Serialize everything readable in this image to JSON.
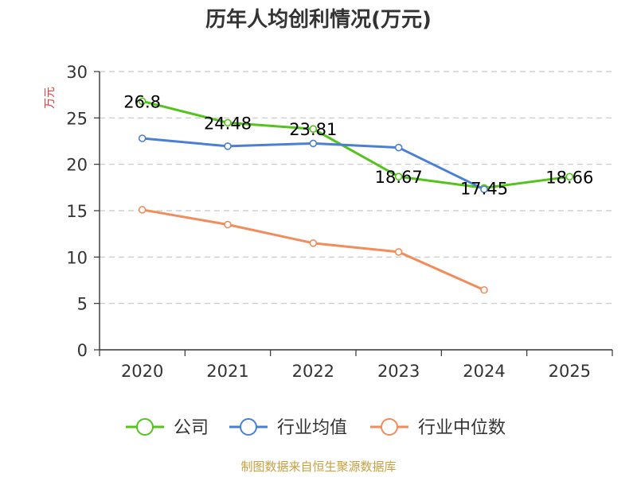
{
  "chart_data": {
    "type": "line",
    "title": "历年人均创利情况(万元)",
    "ylabel": "万元",
    "xlabel": "",
    "categories": [
      "2020",
      "2021",
      "2022",
      "2023",
      "2024",
      "2025"
    ],
    "ylim": [
      0,
      30
    ],
    "yticks": [
      0,
      5,
      10,
      15,
      20,
      25,
      30
    ],
    "grid": true,
    "legend_position": "bottom",
    "series": [
      {
        "name": "公司",
        "color": "#52c41a",
        "values": [
          26.8,
          24.48,
          23.81,
          18.67,
          17.45,
          18.66
        ],
        "labels": [
          "26.8",
          "24.48",
          "23.81",
          "18.67",
          "17.45",
          "18.66"
        ]
      },
      {
        "name": "行业均值",
        "color": "#4a7fd6",
        "values": [
          22.8,
          21.95,
          22.25,
          21.8,
          17.3,
          null
        ]
      },
      {
        "name": "行业中位数",
        "color": "#f28c5a",
        "values": [
          15.1,
          13.5,
          11.5,
          10.55,
          6.45,
          null
        ]
      }
    ],
    "source": "制图数据来自恒生聚源数据库",
    "source_color": "#c8a040",
    "ylabel_color": "#e03c3c"
  }
}
